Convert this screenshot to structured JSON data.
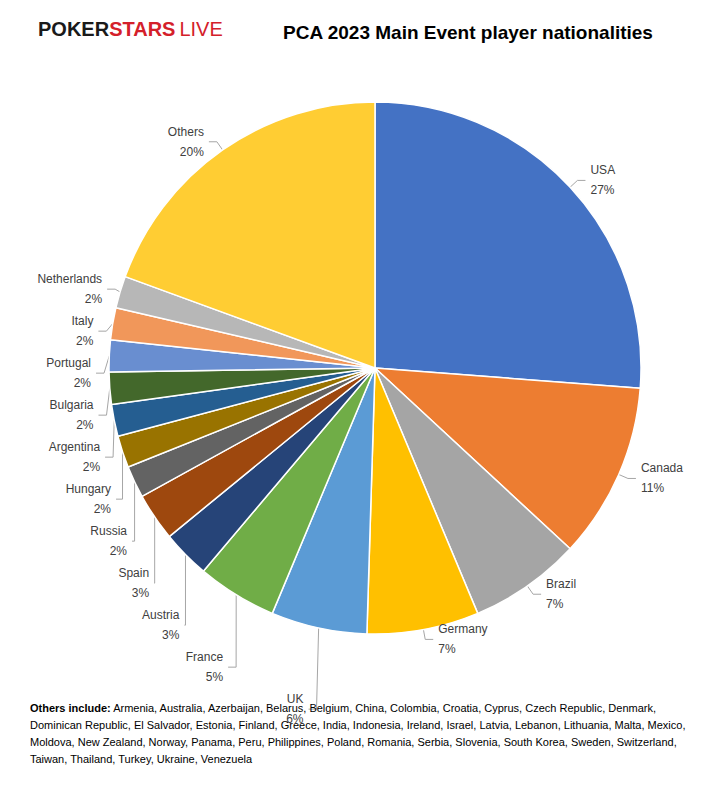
{
  "chart_data": {
    "type": "pie",
    "title": "PCA 2023 Main Event player nationalities",
    "logo": [
      "POKER",
      "STARS",
      "LIVE"
    ],
    "categories": [
      "USA",
      "Canada",
      "Brazil",
      "Germany",
      "UK",
      "France",
      "Austria",
      "Spain",
      "Russia",
      "Hungary",
      "Argentina",
      "Bulgaria",
      "Portugal",
      "Italy",
      "Netherlands",
      "Others"
    ],
    "values": [
      27,
      11,
      7,
      7,
      6,
      5,
      3,
      3,
      2,
      2,
      2,
      2,
      2,
      2,
      2,
      20
    ],
    "value_labels": [
      "27%",
      "11%",
      "7%",
      "7%",
      "6%",
      "5%",
      "3%",
      "3%",
      "2%",
      "2%",
      "2%",
      "2%",
      "2%",
      "2%",
      "2%",
      "20%"
    ],
    "colors": [
      "#4472C4",
      "#ED7D31",
      "#A5A5A5",
      "#FFC000",
      "#5B9BD5",
      "#70AD47",
      "#264478",
      "#9E480E",
      "#636363",
      "#997300",
      "#255E91",
      "#43682B",
      "#698ED0",
      "#F1975A",
      "#B7B7B7",
      "#FFCD33"
    ],
    "data_labels": true,
    "legend": false,
    "note": {
      "title": "Others include:",
      "text": "Armenia, Australia, Azerbaijan, Belarus, Belgium, China, Colombia, Croatia, Cyprus, Czech Republic, Denmark, Dominican Republic, El Salvador, Estonia, Finland, Greece, India, Indonesia, Ireland, Israel, Latvia, Lebanon, Lithuania, Malta, Mexico, Moldova, New Zealand, Norway, Panama, Peru, Philippines, Poland, Romania, Serbia, Slovenia, South Korea, Sweden, Switzerland, Taiwan, Thailand, Turkey, Ukraine, Venezuela"
    }
  }
}
